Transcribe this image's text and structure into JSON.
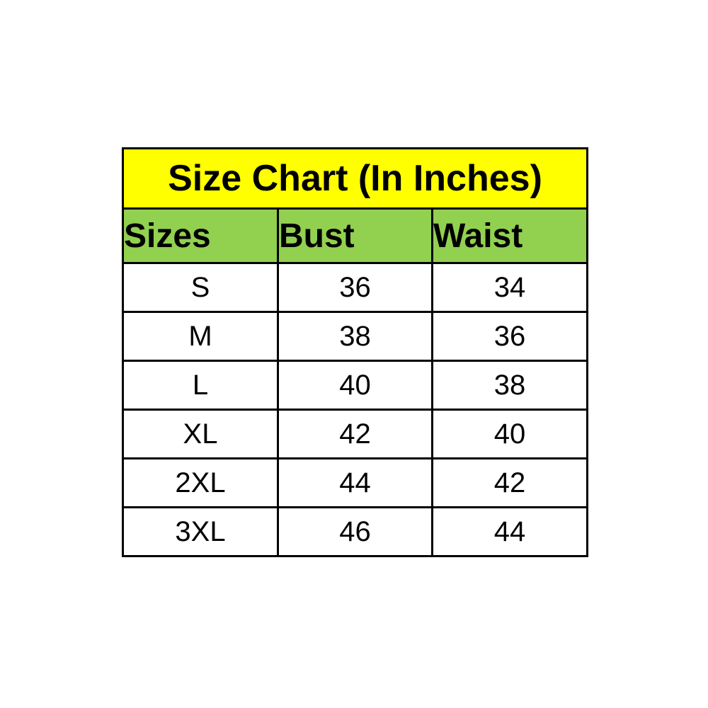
{
  "page": {
    "background": "#ffffff"
  },
  "chart_data": {
    "type": "table",
    "title": "Size Chart (In Inches)",
    "columns": [
      "Sizes",
      "Bust",
      "Waist"
    ],
    "rows": [
      [
        "S",
        "36",
        "34"
      ],
      [
        "M",
        "38",
        "36"
      ],
      [
        "L",
        "40",
        "38"
      ],
      [
        "XL",
        "42",
        "40"
      ],
      [
        "2XL",
        "44",
        "42"
      ],
      [
        "3XL",
        "46",
        "44"
      ]
    ],
    "colors": {
      "title_bg": "#ffff00",
      "header_bg": "#92d050",
      "row_bg": "#ffffff",
      "border": "#000000",
      "text": "#000000"
    },
    "layout": {
      "title_align": "center",
      "header_align": "left",
      "data_align": "center",
      "grid": "all-borders"
    }
  }
}
